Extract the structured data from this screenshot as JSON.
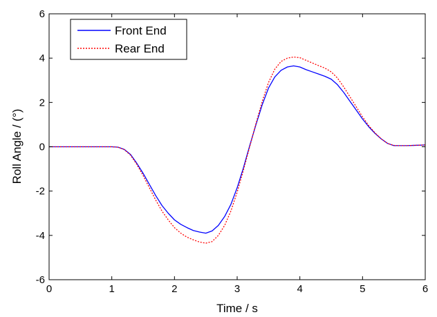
{
  "chart_data": {
    "type": "line",
    "title": "",
    "xlabel": "Time / s",
    "ylabel": "Roll Angle / (°)",
    "xlim": [
      0,
      6
    ],
    "ylim": [
      -6,
      6
    ],
    "xticks": [
      0,
      1,
      2,
      3,
      4,
      5,
      6
    ],
    "yticks": [
      -6,
      -4,
      -2,
      0,
      2,
      4,
      6
    ],
    "xtick_labels": [
      "0",
      "1",
      "2",
      "3",
      "4",
      "5",
      "6"
    ],
    "ytick_labels": [
      "-6",
      "-4",
      "-2",
      "0",
      "2",
      "4",
      "6"
    ],
    "grid": false,
    "legend_position": "top-left",
    "series": [
      {
        "name": "Front End",
        "color": "#0000ff",
        "style": "solid",
        "x": [
          0,
          0.5,
          1.0,
          1.1,
          1.2,
          1.3,
          1.4,
          1.5,
          1.6,
          1.7,
          1.8,
          1.9,
          2.0,
          2.1,
          2.2,
          2.3,
          2.4,
          2.5,
          2.6,
          2.7,
          2.8,
          2.9,
          3.0,
          3.1,
          3.2,
          3.3,
          3.4,
          3.5,
          3.6,
          3.7,
          3.8,
          3.9,
          4.0,
          4.1,
          4.2,
          4.3,
          4.4,
          4.5,
          4.6,
          4.7,
          4.8,
          4.9,
          5.0,
          5.1,
          5.2,
          5.3,
          5.4,
          5.5,
          5.6,
          5.7,
          5.8,
          6.0
        ],
        "y": [
          0,
          0,
          0,
          -0.02,
          -0.12,
          -0.35,
          -0.75,
          -1.2,
          -1.7,
          -2.2,
          -2.65,
          -3.0,
          -3.3,
          -3.5,
          -3.65,
          -3.78,
          -3.85,
          -3.9,
          -3.8,
          -3.55,
          -3.15,
          -2.6,
          -1.85,
          -0.95,
          0.05,
          1.0,
          1.9,
          2.65,
          3.15,
          3.45,
          3.6,
          3.65,
          3.6,
          3.48,
          3.38,
          3.28,
          3.18,
          3.05,
          2.8,
          2.45,
          2.05,
          1.65,
          1.25,
          0.9,
          0.6,
          0.35,
          0.15,
          0.05,
          0.05,
          0.05,
          0.06,
          0.08
        ]
      },
      {
        "name": "Rear End",
        "color": "#ff0000",
        "style": "dotted",
        "x": [
          0,
          0.5,
          1.0,
          1.1,
          1.2,
          1.3,
          1.4,
          1.5,
          1.6,
          1.7,
          1.8,
          1.9,
          2.0,
          2.1,
          2.2,
          2.3,
          2.4,
          2.5,
          2.6,
          2.7,
          2.8,
          2.9,
          3.0,
          3.1,
          3.2,
          3.3,
          3.4,
          3.5,
          3.6,
          3.7,
          3.8,
          3.9,
          4.0,
          4.1,
          4.2,
          4.3,
          4.4,
          4.5,
          4.6,
          4.7,
          4.8,
          4.9,
          5.0,
          5.1,
          5.2,
          5.3,
          5.4,
          5.5,
          5.6,
          5.7,
          5.8,
          6.0
        ],
        "y": [
          0,
          0,
          0,
          -0.02,
          -0.13,
          -0.38,
          -0.8,
          -1.3,
          -1.85,
          -2.4,
          -2.9,
          -3.3,
          -3.65,
          -3.9,
          -4.08,
          -4.2,
          -4.3,
          -4.35,
          -4.28,
          -4.0,
          -3.55,
          -2.9,
          -2.05,
          -1.05,
          0.0,
          1.05,
          2.05,
          2.9,
          3.5,
          3.85,
          4.0,
          4.05,
          4.02,
          3.9,
          3.78,
          3.66,
          3.55,
          3.38,
          3.1,
          2.7,
          2.25,
          1.8,
          1.35,
          0.95,
          0.62,
          0.35,
          0.15,
          0.06,
          0.05,
          0.05,
          0.06,
          0.08
        ]
      }
    ]
  }
}
